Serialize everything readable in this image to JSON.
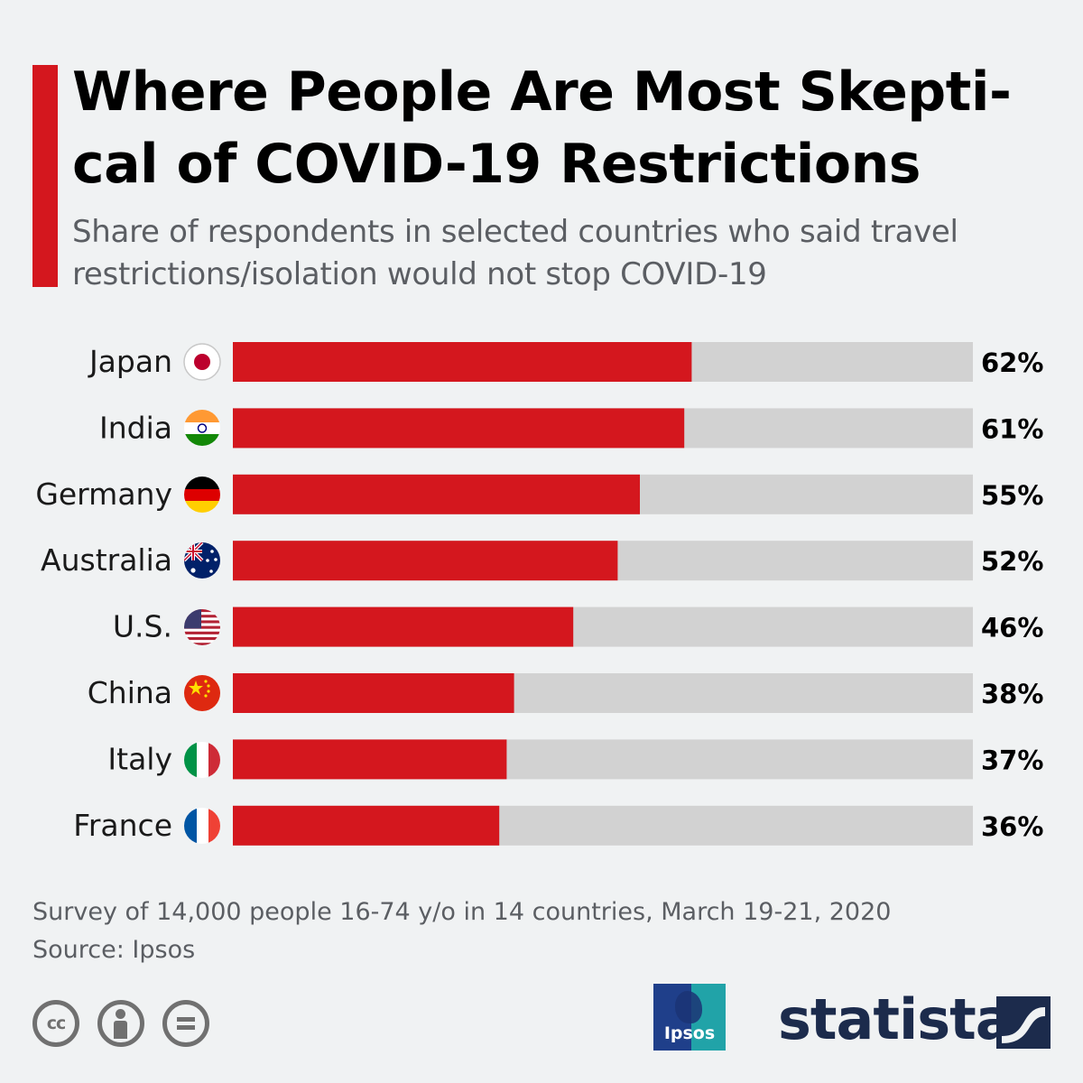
{
  "header": {
    "title": "Where People Are Most Skepti-cal of COVID-19 Restrictions",
    "subtitle": "Share of respondents in selected countries who said travel restrictions/isolation would not stop COVID-19"
  },
  "chart_data": {
    "type": "bar",
    "orientation": "horizontal",
    "categories": [
      "Japan",
      "India",
      "Germany",
      "Australia",
      "U.S.",
      "China",
      "Italy",
      "France"
    ],
    "values": [
      62,
      61,
      55,
      52,
      46,
      38,
      37,
      36
    ],
    "value_labels": [
      "62%",
      "61%",
      "55%",
      "52%",
      "46%",
      "38%",
      "37%",
      "36%"
    ],
    "xlim": [
      0,
      100
    ],
    "flag_icons": [
      "japan-flag-icon",
      "india-flag-icon",
      "germany-flag-icon",
      "australia-flag-icon",
      "us-flag-icon",
      "china-flag-icon",
      "italy-flag-icon",
      "france-flag-icon"
    ],
    "bar_color": "#d4171e",
    "track_color": "#d2d2d2",
    "grid": false
  },
  "footer": {
    "note": "Survey of 14,000 people 16-74 y/o in 14 countries, March 19-21, 2020",
    "source": "Source: Ipsos",
    "cc_label": "cc",
    "ipsos_label": "Ipsos",
    "statista_label": "statista"
  },
  "colors": {
    "accent": "#d4171e",
    "background": "#f0f2f3",
    "statista_navy": "#1c2b4c"
  }
}
